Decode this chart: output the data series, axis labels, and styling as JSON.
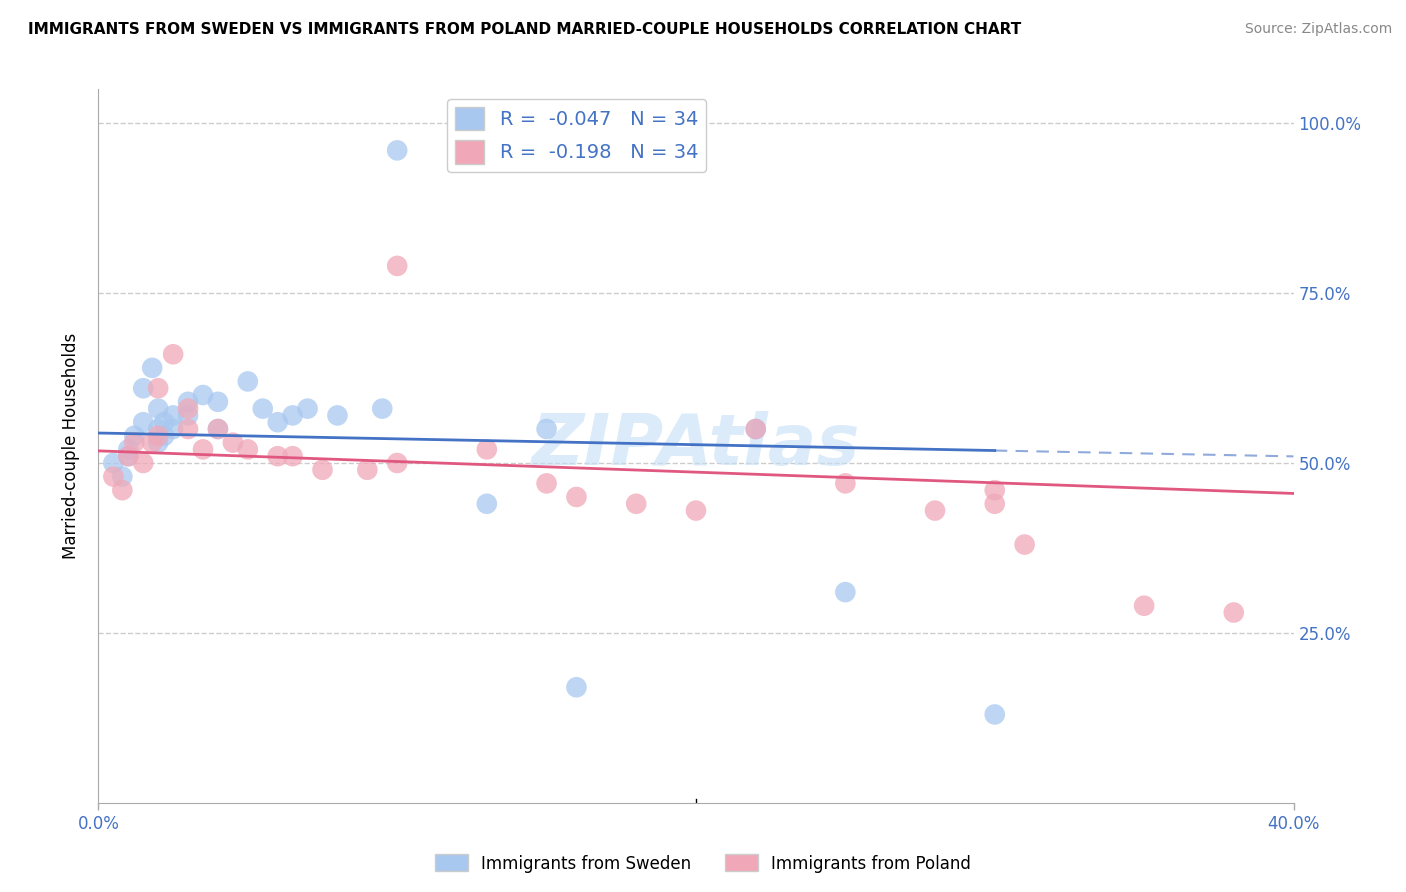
{
  "title": "IMMIGRANTS FROM SWEDEN VS IMMIGRANTS FROM POLAND MARRIED-COUPLE HOUSEHOLDS CORRELATION CHART",
  "source": "Source: ZipAtlas.com",
  "ylabel": "Married-couple Households",
  "legend1_R": "-0.047",
  "legend1_N": "34",
  "legend2_R": "-0.198",
  "legend2_N": "34",
  "legend_label1": "Immigrants from Sweden",
  "legend_label2": "Immigrants from Poland",
  "blue_color": "#a8c8f0",
  "pink_color": "#f0a8b8",
  "blue_line_color": "#4472c4",
  "pink_line_color": "#e05880",
  "watermark": "ZIPAtlas",
  "xlim": [
    0.0,
    0.4
  ],
  "ylim": [
    0.0,
    1.05
  ],
  "sweden_x": [
    0.005,
    0.008,
    0.01,
    0.01,
    0.012,
    0.015,
    0.015,
    0.018,
    0.02,
    0.02,
    0.02,
    0.022,
    0.022,
    0.025,
    0.025,
    0.03,
    0.03,
    0.035,
    0.04,
    0.04,
    0.05,
    0.055,
    0.06,
    0.065,
    0.07,
    0.08,
    0.095,
    0.1,
    0.13,
    0.15,
    0.16,
    0.22,
    0.25,
    0.3
  ],
  "sweden_y": [
    0.5,
    0.48,
    0.51,
    0.52,
    0.54,
    0.56,
    0.61,
    0.64,
    0.53,
    0.55,
    0.58,
    0.54,
    0.56,
    0.55,
    0.57,
    0.57,
    0.59,
    0.6,
    0.55,
    0.59,
    0.62,
    0.58,
    0.56,
    0.57,
    0.58,
    0.57,
    0.58,
    0.96,
    0.44,
    0.55,
    0.17,
    0.55,
    0.31,
    0.13
  ],
  "poland_x": [
    0.005,
    0.008,
    0.01,
    0.012,
    0.015,
    0.018,
    0.02,
    0.02,
    0.025,
    0.03,
    0.03,
    0.035,
    0.04,
    0.045,
    0.05,
    0.06,
    0.065,
    0.075,
    0.09,
    0.1,
    0.1,
    0.13,
    0.15,
    0.16,
    0.18,
    0.2,
    0.22,
    0.25,
    0.28,
    0.3,
    0.3,
    0.31,
    0.35,
    0.38
  ],
  "poland_y": [
    0.48,
    0.46,
    0.51,
    0.53,
    0.5,
    0.53,
    0.54,
    0.61,
    0.66,
    0.55,
    0.58,
    0.52,
    0.55,
    0.53,
    0.52,
    0.51,
    0.51,
    0.49,
    0.49,
    0.5,
    0.79,
    0.52,
    0.47,
    0.45,
    0.44,
    0.43,
    0.55,
    0.47,
    0.43,
    0.46,
    0.44,
    0.38,
    0.29,
    0.28
  ]
}
